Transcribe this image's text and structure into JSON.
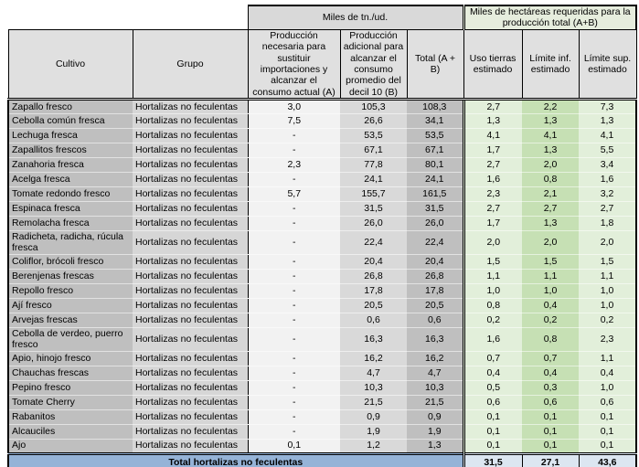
{
  "table": {
    "header": {
      "group_tn": "Miles de tn./ud.",
      "group_ha": "Miles de hectáreas requeridas para la producción total (A+B)",
      "col_cultivo": "Cultivo",
      "col_grupo": "Grupo",
      "col_a": "Producción necesaria para sustituir importaciones y alcanzar el consumo actual (A)",
      "col_b": "Producción adicional para alcanzar el consumo promedio del decil 10 (B)",
      "col_total": "Total (A + B)",
      "col_uso": "Uso tierras estimado",
      "col_inf": "Límite inf. estimado",
      "col_sup": "Límite sup. estimado"
    },
    "rows": [
      {
        "cultivo": "Zapallo fresco",
        "grupo": "Hortalizas no feculentas",
        "a": "3,0",
        "b": "105,3",
        "total": "108,3",
        "uso": "2,7",
        "inf": "2,2",
        "sup": "7,3"
      },
      {
        "cultivo": "Cebolla común fresca",
        "grupo": "Hortalizas no feculentas",
        "a": "7,5",
        "b": "26,6",
        "total": "34,1",
        "uso": "1,3",
        "inf": "1,3",
        "sup": "1,3"
      },
      {
        "cultivo": "Lechuga fresca",
        "grupo": "Hortalizas no feculentas",
        "a": "-",
        "b": "53,5",
        "total": "53,5",
        "uso": "4,1",
        "inf": "4,1",
        "sup": "4,1"
      },
      {
        "cultivo": "Zapallitos frescos",
        "grupo": "Hortalizas no feculentas",
        "a": "-",
        "b": "67,1",
        "total": "67,1",
        "uso": "1,7",
        "inf": "1,3",
        "sup": "5,5"
      },
      {
        "cultivo": "Zanahoria fresca",
        "grupo": "Hortalizas no feculentas",
        "a": "2,3",
        "b": "77,8",
        "total": "80,1",
        "uso": "2,7",
        "inf": "2,0",
        "sup": "3,4"
      },
      {
        "cultivo": "Acelga fresca",
        "grupo": "Hortalizas no feculentas",
        "a": "-",
        "b": "24,1",
        "total": "24,1",
        "uso": "1,6",
        "inf": "0,8",
        "sup": "1,6"
      },
      {
        "cultivo": "Tomate redondo fresco",
        "grupo": "Hortalizas no feculentas",
        "a": "5,7",
        "b": "155,7",
        "total": "161,5",
        "uso": "2,3",
        "inf": "2,1",
        "sup": "3,2"
      },
      {
        "cultivo": "Espinaca fresca",
        "grupo": "Hortalizas no feculentas",
        "a": "-",
        "b": "31,5",
        "total": "31,5",
        "uso": "2,7",
        "inf": "2,7",
        "sup": "2,7"
      },
      {
        "cultivo": "Remolacha fresca",
        "grupo": "Hortalizas no feculentas",
        "a": "-",
        "b": "26,0",
        "total": "26,0",
        "uso": "1,7",
        "inf": "1,3",
        "sup": "1,8"
      },
      {
        "cultivo": "Radicheta, radicha, rúcula fresca",
        "grupo": "Hortalizas no feculentas",
        "a": "-",
        "b": "22,4",
        "total": "22,4",
        "uso": "2,0",
        "inf": "2,0",
        "sup": "2,0"
      },
      {
        "cultivo": "Coliflor, brócoli fresco",
        "grupo": "Hortalizas no feculentas",
        "a": "-",
        "b": "20,4",
        "total": "20,4",
        "uso": "1,5",
        "inf": "1,5",
        "sup": "1,5"
      },
      {
        "cultivo": "Berenjenas frescas",
        "grupo": "Hortalizas no feculentas",
        "a": "-",
        "b": "26,8",
        "total": "26,8",
        "uso": "1,1",
        "inf": "1,1",
        "sup": "1,1"
      },
      {
        "cultivo": "Repollo fresco",
        "grupo": "Hortalizas no feculentas",
        "a": "-",
        "b": "17,8",
        "total": "17,8",
        "uso": "1,0",
        "inf": "1,0",
        "sup": "1,0"
      },
      {
        "cultivo": "Ají fresco",
        "grupo": "Hortalizas no feculentas",
        "a": "-",
        "b": "20,5",
        "total": "20,5",
        "uso": "0,8",
        "inf": "0,4",
        "sup": "1,0"
      },
      {
        "cultivo": "Arvejas frescas",
        "grupo": "Hortalizas no feculentas",
        "a": "-",
        "b": "0,6",
        "total": "0,6",
        "uso": "0,2",
        "inf": "0,2",
        "sup": "0,2"
      },
      {
        "cultivo": "Cebolla de verdeo, puerro fresco",
        "grupo": "Hortalizas no feculentas",
        "a": "-",
        "b": "16,3",
        "total": "16,3",
        "uso": "1,6",
        "inf": "0,8",
        "sup": "2,3"
      },
      {
        "cultivo": "Apio, hinojo fresco",
        "grupo": "Hortalizas no feculentas",
        "a": "-",
        "b": "16,2",
        "total": "16,2",
        "uso": "0,7",
        "inf": "0,7",
        "sup": "1,1"
      },
      {
        "cultivo": "Chauchas frescas",
        "grupo": "Hortalizas no feculentas",
        "a": "-",
        "b": "4,7",
        "total": "4,7",
        "uso": "0,4",
        "inf": "0,4",
        "sup": "0,4"
      },
      {
        "cultivo": "Pepino fresco",
        "grupo": "Hortalizas no feculentas",
        "a": "-",
        "b": "10,3",
        "total": "10,3",
        "uso": "0,5",
        "inf": "0,3",
        "sup": "1,0"
      },
      {
        "cultivo": "Tomate Cherry",
        "grupo": "Hortalizas no feculentas",
        "a": "-",
        "b": "21,5",
        "total": "21,5",
        "uso": "0,6",
        "inf": "0,6",
        "sup": "0,6"
      },
      {
        "cultivo": "Rabanitos",
        "grupo": "Hortalizas no feculentas",
        "a": "-",
        "b": "0,9",
        "total": "0,9",
        "uso": "0,1",
        "inf": "0,1",
        "sup": "0,1"
      },
      {
        "cultivo": "Alcauciles",
        "grupo": "Hortalizas no feculentas",
        "a": "-",
        "b": "1,9",
        "total": "1,9",
        "uso": "0,1",
        "inf": "0,1",
        "sup": "0,1"
      },
      {
        "cultivo": "Ajo",
        "grupo": "Hortalizas no feculentas",
        "a": "0,1",
        "b": "1,2",
        "total": "1,3",
        "uso": "0,1",
        "inf": "0,1",
        "sup": "0,1"
      }
    ],
    "total_row": {
      "label": "Total hortalizas no feculentas",
      "uso": "31,5",
      "inf": "27,1",
      "sup": "43,6"
    }
  },
  "colors": {
    "header_gray": "#D9D9D9",
    "cultivo_col": "#BFBFBF",
    "grupo_col": "#D6D6D6",
    "prod_a_col": "#F2F2F2",
    "prod_b_col": "#D9D9D9",
    "total_col": "#BFBFBF",
    "uso_col": "#E2EFDA",
    "limite_inf_col": "#C6E0B4",
    "limite_sup_col": "#E2EFDA",
    "total_row_bg": "#95B3D7",
    "total_values_bg": "#DCE6F1"
  }
}
